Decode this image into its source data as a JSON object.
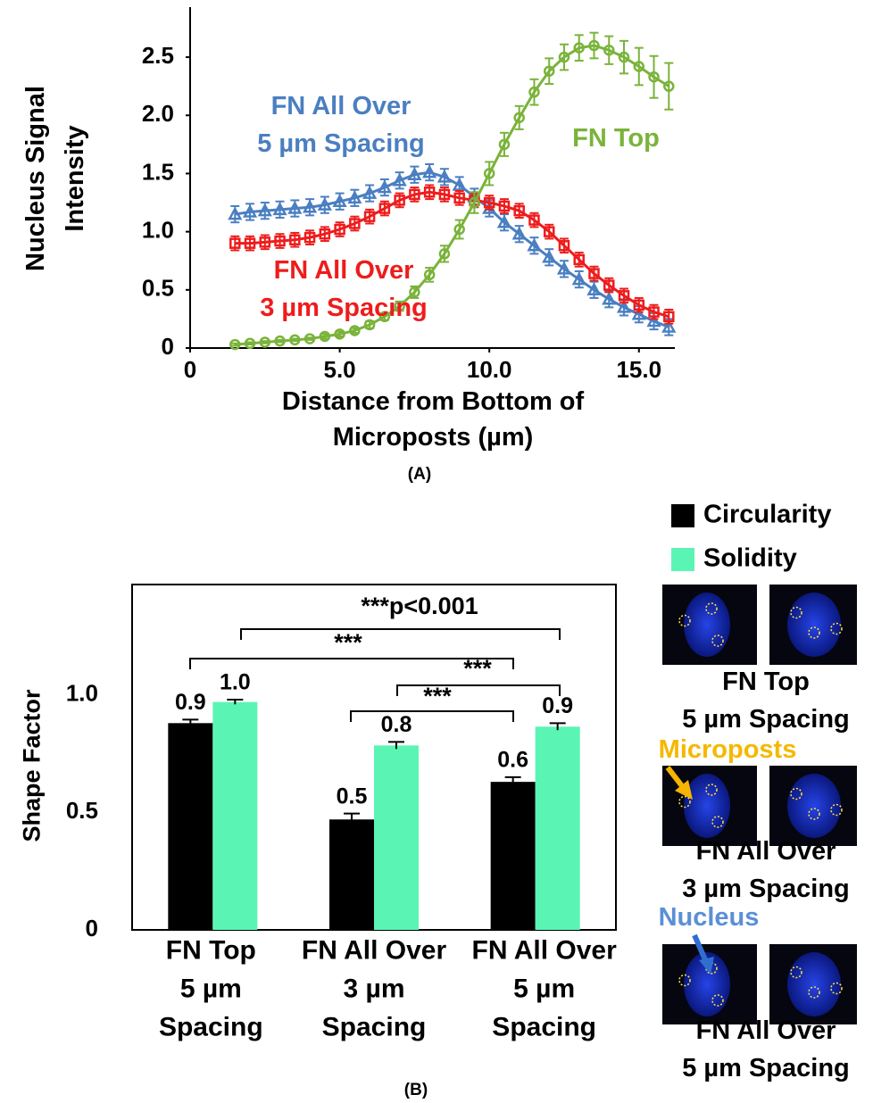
{
  "chart_data": [
    {
      "type": "line",
      "panel_label": "(A)",
      "x_label": "Distance from Bottom of\nMicroposts (µm)",
      "y_label": "Nucleus Signal\nIntensity",
      "x": [
        1.5,
        2,
        2.5,
        3,
        3.5,
        4,
        4.5,
        5,
        5.5,
        6,
        6.5,
        7,
        7.5,
        8,
        8.5,
        9,
        9.5,
        10,
        10.5,
        11,
        11.5,
        12,
        12.5,
        13,
        13.5,
        14,
        14.5,
        15,
        15.5,
        16
      ],
      "xlim": [
        0,
        16.2
      ],
      "xticks": [
        0,
        {
          "value": 5,
          "label": "5.0"
        },
        {
          "value": 10,
          "label": "10.0"
        },
        {
          "value": 15,
          "label": "15.0"
        }
      ],
      "ylim": [
        0,
        2.93
      ],
      "yticks": [
        0,
        0.5,
        {
          "value": 1,
          "label": "1.0"
        },
        1.5,
        {
          "value": 2,
          "label": "2.0"
        },
        2.5
      ],
      "series": [
        {
          "name": "FN All Over\n5 µm Spacing",
          "color": "#4a7fc1",
          "marker": "triangle",
          "values": [
            1.15,
            1.17,
            1.18,
            1.19,
            1.2,
            1.21,
            1.23,
            1.26,
            1.29,
            1.33,
            1.38,
            1.44,
            1.49,
            1.51,
            1.47,
            1.4,
            1.3,
            1.2,
            1.08,
            0.98,
            0.88,
            0.78,
            0.68,
            0.59,
            0.5,
            0.42,
            0.35,
            0.29,
            0.23,
            0.18
          ],
          "errors": [
            0.07,
            0.07,
            0.07,
            0.07,
            0.07,
            0.07,
            0.07,
            0.07,
            0.07,
            0.07,
            0.07,
            0.07,
            0.07,
            0.07,
            0.07,
            0.07,
            0.07,
            0.07,
            0.07,
            0.07,
            0.07,
            0.07,
            0.07,
            0.07,
            0.07,
            0.07,
            0.07,
            0.07,
            0.07,
            0.07
          ]
        },
        {
          "name": "FN All Over\n3 µm Spacing",
          "color": "#ee1c1c",
          "marker": "square",
          "values": [
            0.9,
            0.9,
            0.91,
            0.92,
            0.93,
            0.95,
            0.98,
            1.02,
            1.07,
            1.13,
            1.2,
            1.27,
            1.32,
            1.34,
            1.32,
            1.29,
            1.27,
            1.25,
            1.22,
            1.18,
            1.1,
            1.0,
            0.88,
            0.76,
            0.64,
            0.54,
            0.45,
            0.37,
            0.31,
            0.27
          ],
          "errors": [
            0.06,
            0.06,
            0.06,
            0.06,
            0.06,
            0.06,
            0.06,
            0.06,
            0.06,
            0.06,
            0.06,
            0.06,
            0.06,
            0.06,
            0.06,
            0.06,
            0.06,
            0.06,
            0.06,
            0.06,
            0.06,
            0.06,
            0.06,
            0.06,
            0.06,
            0.06,
            0.06,
            0.06,
            0.06,
            0.06
          ]
        },
        {
          "name": "FN Top",
          "color": "#7ab33a",
          "marker": "circle",
          "values": [
            0.03,
            0.04,
            0.05,
            0.06,
            0.07,
            0.08,
            0.1,
            0.12,
            0.15,
            0.2,
            0.27,
            0.36,
            0.48,
            0.63,
            0.81,
            1.02,
            1.25,
            1.5,
            1.75,
            1.98,
            2.2,
            2.38,
            2.5,
            2.58,
            2.6,
            2.56,
            2.5,
            2.42,
            2.33,
            2.25
          ],
          "errors": [
            0.01,
            0.01,
            0.01,
            0.01,
            0.01,
            0.01,
            0.02,
            0.02,
            0.02,
            0.03,
            0.03,
            0.04,
            0.05,
            0.06,
            0.07,
            0.08,
            0.09,
            0.1,
            0.1,
            0.1,
            0.11,
            0.11,
            0.11,
            0.11,
            0.11,
            0.12,
            0.14,
            0.16,
            0.18,
            0.2
          ]
        }
      ]
    },
    {
      "type": "bar",
      "panel_label": "(B)",
      "y_label": "Shape Factor",
      "categories": [
        "FN Top\n5 µm\nSpacing",
        "FN All Over\n3 µm\nSpacing",
        "FN All Over\n5 µm\nSpacing"
      ],
      "ylim": [
        0,
        1.47
      ],
      "yticks": [
        0,
        0.5,
        {
          "value": 1,
          "label": "1.0"
        }
      ],
      "series": [
        {
          "name": "Circularity",
          "color": "#000000",
          "values": [
            0.88,
            0.47,
            0.63
          ],
          "value_labels": [
            "0.9",
            "0.5",
            "0.6"
          ],
          "errors": [
            0.015,
            0.025,
            0.02
          ]
        },
        {
          "name": "Solidity",
          "color": "#5af5b4",
          "values": [
            0.97,
            0.785,
            0.865
          ],
          "value_labels": [
            "1.0",
            "0.8",
            "0.9"
          ],
          "errors": [
            0.01,
            0.015,
            0.015
          ]
        }
      ],
      "significance": [
        "***p<0.001",
        "***",
        "***",
        "***"
      ]
    }
  ],
  "image_panel": {
    "captions": [
      "FN Top\n5 µm Spacing",
      "FN All Over\n3 µm Spacing",
      "FN All Over\n5 µm Spacing"
    ],
    "pointers": [
      "Microposts",
      "Nucleus"
    ]
  }
}
